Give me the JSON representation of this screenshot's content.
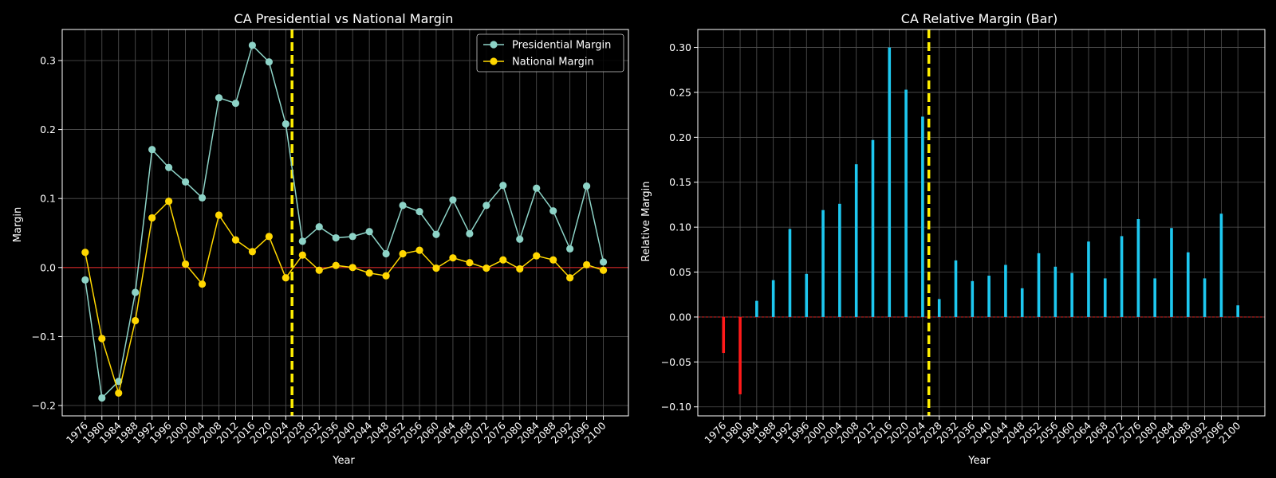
{
  "chart_data": [
    {
      "type": "line",
      "title": "CA Presidential vs National Margin",
      "xlabel": "Year",
      "ylabel": "Margin",
      "x": [
        1976,
        1980,
        1984,
        1988,
        1992,
        1996,
        2000,
        2004,
        2008,
        2012,
        2016,
        2020,
        2024,
        2028,
        2032,
        2036,
        2040,
        2044,
        2048,
        2052,
        2056,
        2060,
        2064,
        2068,
        2072,
        2076,
        2080,
        2084,
        2088,
        2092,
        2096,
        2100
      ],
      "xlim": [
        1970.5,
        2106
      ],
      "ylim": [
        -0.215,
        0.345
      ],
      "yticks": [
        -0.2,
        -0.1,
        0.0,
        0.1,
        0.2,
        0.3
      ],
      "ytick_labels": [
        "−0.2",
        "−0.1",
        "0.0",
        "0.1",
        "0.2",
        "0.3"
      ],
      "vline_x": 2025.5,
      "hline_y": 0.0,
      "grid": true,
      "legend": "upper right",
      "series": [
        {
          "name": "Presidential Margin",
          "color": "#8dd3c7",
          "values": [
            -0.018,
            -0.189,
            -0.165,
            -0.036,
            0.171,
            0.145,
            0.124,
            0.101,
            0.246,
            0.238,
            0.322,
            0.298,
            0.208,
            0.038,
            0.059,
            0.043,
            0.045,
            0.052,
            0.02,
            0.09,
            0.081,
            0.048,
            0.098,
            0.049,
            0.09,
            0.119,
            0.041,
            0.115,
            0.082,
            0.027,
            0.118,
            0.008
          ]
        },
        {
          "name": "National Margin",
          "color": "#ffd700",
          "values": [
            0.022,
            -0.103,
            -0.182,
            -0.077,
            0.072,
            0.096,
            0.005,
            -0.024,
            0.076,
            0.04,
            0.023,
            0.045,
            -0.015,
            0.018,
            -0.004,
            0.003,
            0.0,
            -0.008,
            -0.012,
            0.02,
            0.025,
            -0.001,
            0.014,
            0.007,
            -0.001,
            0.011,
            -0.002,
            0.017,
            0.011,
            -0.015,
            0.004,
            -0.004
          ]
        }
      ]
    },
    {
      "type": "bar",
      "title": "CA Relative Margin (Bar)",
      "xlabel": "Year",
      "ylabel": "Relative Margin",
      "x": [
        1976,
        1980,
        1984,
        1988,
        1992,
        1996,
        2000,
        2004,
        2008,
        2012,
        2016,
        2020,
        2024,
        2028,
        2032,
        2036,
        2040,
        2044,
        2048,
        2052,
        2056,
        2060,
        2064,
        2068,
        2072,
        2076,
        2080,
        2084,
        2088,
        2092,
        2096,
        2100
      ],
      "values": [
        -0.04,
        -0.086,
        0.018,
        0.041,
        0.098,
        0.048,
        0.119,
        0.126,
        0.17,
        0.197,
        0.3,
        0.253,
        0.223,
        0.02,
        0.063,
        0.04,
        0.046,
        0.058,
        0.032,
        0.071,
        0.056,
        0.049,
        0.084,
        0.043,
        0.09,
        0.109,
        0.043,
        0.099,
        0.072,
        0.043,
        0.115,
        0.013
      ],
      "xlim": [
        1969.8,
        2106.5
      ],
      "ylim": [
        -0.11,
        0.32
      ],
      "yticks": [
        -0.1,
        -0.05,
        0.0,
        0.05,
        0.1,
        0.15,
        0.2,
        0.25,
        0.3
      ],
      "ytick_labels": [
        "−0.10",
        "−0.05",
        "0.00",
        "0.05",
        "0.10",
        "0.15",
        "0.20",
        "0.25",
        "0.30"
      ],
      "vline_x": 2025.5,
      "hline_y": 0.0,
      "grid": true,
      "colors": {
        "positive": "#1ec8f0",
        "negative": "#ff1a1a"
      }
    }
  ],
  "colors": {
    "background": "#000000",
    "axes": "#ffffff",
    "grid": "#555555",
    "zero_line": "#cc2020",
    "cutoff_line": "#ffee00"
  }
}
